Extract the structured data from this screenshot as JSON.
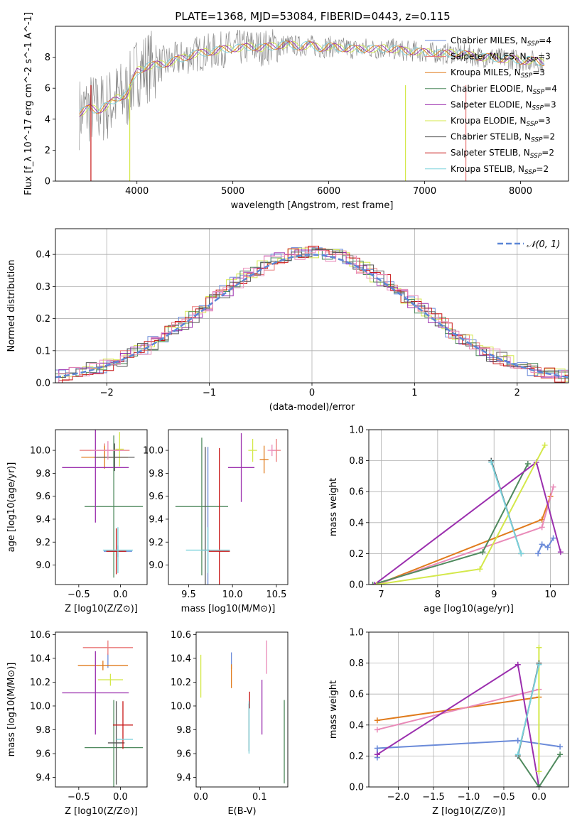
{
  "figure_title": "PLATE=1368, MJD=53084, FIBERID=0443, z=0.115",
  "colors": {
    "chabrier_miles": "#6b8bd9",
    "salpeter_miles": "#e97a7a",
    "kroupa_miles": "#e07b1c",
    "chabrier_elodie": "#4f8a5e",
    "salpeter_elodie": "#9b2fae",
    "kroupa_elodie": "#d4e84a",
    "chabrier_stelib": "#555555",
    "salpeter_stelib": "#c81818",
    "kroupa_stelib": "#7ad2dc",
    "data": "#808080",
    "normal": "#5b86d6",
    "pink": "#e98ab8",
    "grid": "#b0b0b0"
  },
  "chart_data": [
    {
      "type": "line",
      "panel": "spectrum",
      "xlabel": "wavelength [Angstrom, rest frame]",
      "ylabel": "Flux [f_λ 10^-17 erg cm^-2 s^-1 A^-1]",
      "xlim": [
        3150,
        8500
      ],
      "ylim": [
        0,
        10
      ],
      "xticks": [
        "4000",
        "5000",
        "6000",
        "7000",
        "8000"
      ],
      "yticks": [
        "0",
        "2",
        "4",
        "6",
        "8"
      ],
      "grid": false,
      "legend_position": "right",
      "legend": [
        {
          "label": "Chabrier MILES, N_SSP=4",
          "color_key": "chabrier_miles"
        },
        {
          "label": "Salpeter MILES, N_SSP=3",
          "color_key": "salpeter_miles"
        },
        {
          "label": "Kroupa MILES, N_SSP=3",
          "color_key": "kroupa_miles"
        },
        {
          "label": "Chabrier ELODIE, N_SSP=4",
          "color_key": "chabrier_elodie"
        },
        {
          "label": "Salpeter ELODIE, N_SSP=3",
          "color_key": "salpeter_elodie"
        },
        {
          "label": "Kroupa ELODIE, N_SSP=3",
          "color_key": "kroupa_elodie"
        },
        {
          "label": "Chabrier STELIB, N_SSP=2",
          "color_key": "chabrier_stelib"
        },
        {
          "label": "Salpeter STELIB, N_SSP=2",
          "color_key": "salpeter_stelib"
        },
        {
          "label": "Kroupa STELIB, N_SSP=2",
          "color_key": "kroupa_stelib"
        }
      ],
      "continuum": [
        [
          3400,
          4.4
        ],
        [
          3500,
          4.7
        ],
        [
          3600,
          4.6
        ],
        [
          3700,
          4.9
        ],
        [
          3800,
          5.4
        ],
        [
          3900,
          5.6
        ],
        [
          4000,
          7.1
        ],
        [
          4100,
          7.4
        ],
        [
          4200,
          7.5
        ],
        [
          4300,
          7.6
        ],
        [
          4400,
          7.8
        ],
        [
          4500,
          8.0
        ],
        [
          4600,
          8.2
        ],
        [
          4700,
          8.3
        ],
        [
          4800,
          8.4
        ],
        [
          4900,
          8.5
        ],
        [
          5000,
          8.6
        ],
        [
          5100,
          8.6
        ],
        [
          5200,
          8.7
        ],
        [
          5300,
          8.6
        ],
        [
          5400,
          8.7
        ],
        [
          5500,
          8.8
        ],
        [
          5600,
          8.8
        ],
        [
          5700,
          8.7
        ],
        [
          5800,
          8.8
        ],
        [
          5900,
          8.6
        ],
        [
          6000,
          8.7
        ],
        [
          6100,
          8.6
        ],
        [
          6200,
          8.6
        ],
        [
          6300,
          8.5
        ],
        [
          6400,
          8.6
        ],
        [
          6500,
          8.5
        ],
        [
          6600,
          8.6
        ],
        [
          6700,
          8.5
        ],
        [
          6800,
          8.4
        ],
        [
          6900,
          8.4
        ],
        [
          7000,
          8.3
        ],
        [
          7100,
          8.3
        ],
        [
          7200,
          8.2
        ],
        [
          7300,
          8.3
        ],
        [
          7400,
          8.2
        ],
        [
          7500,
          8.1
        ],
        [
          7600,
          8.0
        ],
        [
          7700,
          8.0
        ],
        [
          7800,
          7.9
        ],
        [
          7900,
          7.9
        ],
        [
          8000,
          7.8
        ],
        [
          8100,
          7.8
        ],
        [
          8200,
          7.7
        ],
        [
          8250,
          7.7
        ]
      ],
      "spikes": [
        [
          3520,
          "salpeter_stelib"
        ],
        [
          3925,
          "kroupa_elodie"
        ],
        [
          6800,
          "kroupa_elodie"
        ],
        [
          7430,
          "salpeter_miles"
        ]
      ]
    },
    {
      "type": "line",
      "panel": "residual_histogram",
      "xlabel": "(data-model)/error",
      "ylabel": "Normed distribution",
      "xlim": [
        -2.5,
        2.5
      ],
      "ylim": [
        0,
        0.48
      ],
      "xticks": [
        "−2",
        "−1",
        "0",
        "1",
        "2"
      ],
      "yticks": [
        "0.0",
        "0.1",
        "0.2",
        "0.3",
        "0.4"
      ],
      "grid": true,
      "legend_position": "upper right",
      "legend": [
        {
          "label": "𝒩(0, 1)",
          "color_key": "normal"
        }
      ]
    },
    {
      "type": "scatter",
      "panel": "age_vs_Z",
      "xlabel": "Z [log10(Z/Z⊙)]",
      "ylabel": "age [log10(age/yr)]",
      "xlim": [
        -0.78,
        0.32
      ],
      "ylim": [
        8.83,
        10.18
      ],
      "xticks": [
        "−0.5",
        "0.0"
      ],
      "yticks": [
        "9.0",
        "9.2",
        "9.4",
        "9.6",
        "9.8",
        "10.0"
      ],
      "grid": false,
      "points": [
        {
          "color_key": "chabrier_miles",
          "x": -0.03,
          "y": 9.12,
          "xerr": 0.17,
          "yerr": 0.05
        },
        {
          "color_key": "salpeter_miles",
          "x": -0.19,
          "y": 10.0,
          "xerr": 0.3,
          "yerr": 0.06
        },
        {
          "color_key": "kroupa_miles",
          "x": -0.19,
          "y": 9.94,
          "xerr": 0.28,
          "yerr": 0.1
        },
        {
          "color_key": "chabrier_elodie",
          "x": -0.08,
          "y": 9.51,
          "xerr": 0.35,
          "yerr": 0.62
        },
        {
          "color_key": "salpeter_elodie",
          "x": -0.3,
          "y": 9.85,
          "xerr": 0.4,
          "yerr": 0.48
        },
        {
          "color_key": "kroupa_elodie",
          "x": -0.01,
          "y": 10.01,
          "xerr": 0.05,
          "yerr": 0.15
        },
        {
          "color_key": "chabrier_stelib",
          "x": -0.07,
          "y": 9.94,
          "xerr": 0.24,
          "yerr": 0.12
        },
        {
          "color_key": "salpeter_stelib",
          "x": -0.05,
          "y": 9.12,
          "xerr": 0.12,
          "yerr": 0.2
        },
        {
          "color_key": "kroupa_stelib",
          "x": -0.03,
          "y": 9.13,
          "xerr": 0.18,
          "yerr": 0.2
        },
        {
          "color_key": "pink",
          "x": -0.15,
          "y": 10.0,
          "xerr": 0.2,
          "yerr": 0.08
        }
      ]
    },
    {
      "type": "scatter",
      "panel": "age_vs_mass",
      "xlabel": "mass [log10(M/M⊙)]",
      "ylabel": "",
      "xlim": [
        9.27,
        10.63
      ],
      "ylim": [
        8.83,
        10.18
      ],
      "xticks": [
        "9.5",
        "10.0",
        "10.5"
      ],
      "yticks": [
        "9.0",
        "9.2",
        "9.4",
        "9.6",
        "9.8",
        "10.0"
      ],
      "grid": false,
      "points": [
        {
          "color_key": "chabrier_miles",
          "x": 9.72,
          "y": 9.13,
          "xerr": 0.0,
          "yerr": 0.9
        },
        {
          "color_key": "salpeter_miles",
          "x": 10.5,
          "y": 10.0,
          "xerr": 0.05,
          "yerr": 0.1
        },
        {
          "color_key": "kroupa_miles",
          "x": 10.36,
          "y": 9.92,
          "xerr": 0.05,
          "yerr": 0.12
        },
        {
          "color_key": "chabrier_elodie",
          "x": 9.65,
          "y": 9.51,
          "xerr": 0.3,
          "yerr": 0.6
        },
        {
          "color_key": "salpeter_elodie",
          "x": 10.1,
          "y": 9.85,
          "xerr": 0.15,
          "yerr": 0.3
        },
        {
          "color_key": "kroupa_elodie",
          "x": 10.23,
          "y": 10.0,
          "xerr": 0.05,
          "yerr": 0.1
        },
        {
          "color_key": "chabrier_stelib",
          "x": 9.69,
          "y": 9.13,
          "xerr": 0.05,
          "yerr": 0.9
        },
        {
          "color_key": "salpeter_stelib",
          "x": 9.85,
          "y": 9.12,
          "xerr": 0.12,
          "yerr": 0.9
        },
        {
          "color_key": "kroupa_stelib",
          "x": 9.72,
          "y": 9.13,
          "xerr": 0.25,
          "yerr": 0.2
        },
        {
          "color_key": "pink",
          "x": 10.45,
          "y": 10.0,
          "xerr": 0.05,
          "yerr": 0.05
        }
      ]
    },
    {
      "type": "line",
      "panel": "mass_weight_vs_age",
      "xlabel": "age [log10(age/yr)]",
      "ylabel": "mass weight",
      "xlim": [
        6.78,
        10.32
      ],
      "ylim": [
        0,
        1
      ],
      "xticks": [
        "7",
        "8",
        "9",
        "10"
      ],
      "yticks": [
        "0.0",
        "0.2",
        "0.4",
        "0.6",
        "0.8",
        "1.0"
      ],
      "grid": true,
      "series": [
        {
          "color_key": "chabrier_miles",
          "x": [
            9.78,
            9.85,
            9.95,
            10.05
          ],
          "y": [
            0.2,
            0.26,
            0.24,
            0.3
          ]
        },
        {
          "color_key": "kroupa_miles",
          "x": [
            6.92,
            9.85,
            10.0
          ],
          "y": [
            0.0,
            0.42,
            0.57
          ]
        },
        {
          "color_key": "pink",
          "x": [
            6.92,
            9.85,
            10.05
          ],
          "y": [
            0.0,
            0.37,
            0.63
          ]
        },
        {
          "color_key": "chabrier_elodie",
          "x": [
            6.85,
            8.8,
            9.6
          ],
          "y": [
            0.0,
            0.21,
            0.78
          ]
        },
        {
          "color_key": "salpeter_elodie",
          "x": [
            6.88,
            9.75,
            10.18
          ],
          "y": [
            0.0,
            0.79,
            0.21
          ]
        },
        {
          "color_key": "kroupa_elodie",
          "x": [
            6.92,
            8.75,
            9.9
          ],
          "y": [
            0.0,
            0.1,
            0.9
          ]
        },
        {
          "color_key": "chabrier_stelib",
          "x": [
            8.95,
            9.48
          ],
          "y": [
            0.8,
            0.2
          ]
        },
        {
          "color_key": "kroupa_stelib",
          "x": [
            8.95,
            9.48
          ],
          "y": [
            0.79,
            0.2
          ]
        }
      ]
    },
    {
      "type": "scatter",
      "panel": "mass_vs_Z",
      "xlabel": "Z [log10(Z/Z⊙)]",
      "ylabel": "mass [log10(M/M⊙)]",
      "xlim": [
        -0.78,
        0.32
      ],
      "ylim": [
        9.32,
        10.62
      ],
      "xticks": [
        "−0.5",
        "0.0"
      ],
      "yticks": [
        "9.4",
        "9.6",
        "9.8",
        "10.0",
        "10.2",
        "10.4",
        "10.6"
      ],
      "grid": false,
      "points": [
        {
          "color_key": "chabrier_miles",
          "x": -0.15,
          "y": 10.38,
          "xerr": 0.0,
          "yerr": 0.06
        },
        {
          "color_key": "salpeter_miles",
          "x": -0.15,
          "y": 10.49,
          "xerr": 0.3,
          "yerr": 0.06
        },
        {
          "color_key": "kroupa_miles",
          "x": -0.21,
          "y": 10.34,
          "xerr": 0.3,
          "yerr": 0.04
        },
        {
          "color_key": "chabrier_elodie",
          "x": -0.08,
          "y": 9.65,
          "xerr": 0.35,
          "yerr": 0.4
        },
        {
          "color_key": "salpeter_elodie",
          "x": -0.3,
          "y": 10.11,
          "xerr": 0.4,
          "yerr": 0.35
        },
        {
          "color_key": "kroupa_elodie",
          "x": -0.12,
          "y": 10.22,
          "xerr": 0.15,
          "yerr": 0.05
        },
        {
          "color_key": "chabrier_stelib",
          "x": -0.05,
          "y": 9.69,
          "xerr": 0.1,
          "yerr": 0.35
        },
        {
          "color_key": "salpeter_stelib",
          "x": 0.03,
          "y": 9.84,
          "xerr": 0.12,
          "yerr": 0.2
        },
        {
          "color_key": "kroupa_stelib",
          "x": 0.05,
          "y": 9.72,
          "xerr": 0.1,
          "yerr": 0.0
        }
      ]
    },
    {
      "type": "scatter",
      "panel": "mass_vs_ebv",
      "xlabel": "E(B-V)",
      "ylabel": "",
      "xlim": [
        -0.008,
        0.148
      ],
      "ylim": [
        9.32,
        10.62
      ],
      "xticks": [
        "0.0",
        "0.1"
      ],
      "yticks": [
        "9.4",
        "9.6",
        "9.8",
        "10.0",
        "10.2",
        "10.4",
        "10.6"
      ],
      "grid": false,
      "points": [
        {
          "color_key": "chabrier_miles",
          "x": 0.052,
          "y": 10.38,
          "yerr": 0.07
        },
        {
          "color_key": "kroupa_miles",
          "x": 0.052,
          "y": 10.25,
          "yerr": 0.1
        },
        {
          "color_key": "kroupa_elodie",
          "x": 0.0,
          "y": 10.25,
          "yerr": 0.18
        },
        {
          "color_key": "salpeter_stelib",
          "x": 0.083,
          "y": 10.05,
          "yerr": 0.07
        },
        {
          "color_key": "chabrier_stelib",
          "x": 0.082,
          "y": 9.82,
          "yerr": 0.2
        },
        {
          "color_key": "kroupa_stelib",
          "x": 0.082,
          "y": 9.82,
          "yerr": 0.22
        },
        {
          "color_key": "salpeter_elodie",
          "x": 0.104,
          "y": 9.99,
          "yerr": 0.23
        },
        {
          "color_key": "pink",
          "x": 0.112,
          "y": 10.41,
          "yerr": 0.14
        },
        {
          "color_key": "chabrier_elodie",
          "x": 0.142,
          "y": 9.7,
          "yerr": 0.35
        }
      ]
    },
    {
      "type": "line",
      "panel": "mass_weight_vs_Z",
      "xlabel": "Z [log10(Z/Z⊙)]",
      "ylabel": "mass weight",
      "xlim": [
        -2.42,
        0.42
      ],
      "ylim": [
        0,
        1
      ],
      "xticks": [
        "−2.0",
        "−1.5",
        "−1.0",
        "−0.5",
        "0.0"
      ],
      "yticks": [
        "0.0",
        "0.2",
        "0.4",
        "0.6",
        "0.8",
        "1.0"
      ],
      "grid": true,
      "series": [
        {
          "color_key": "chabrier_miles",
          "x": [
            -2.3,
            -2.3,
            -0.3,
            0.3
          ],
          "y": [
            0.19,
            0.25,
            0.3,
            0.26
          ]
        },
        {
          "color_key": "kroupa_miles",
          "x": [
            -2.3,
            0.0
          ],
          "y": [
            0.43,
            0.58
          ]
        },
        {
          "color_key": "pink",
          "x": [
            -2.3,
            0.0
          ],
          "y": [
            0.37,
            0.63
          ]
        },
        {
          "color_key": "salpeter_elodie",
          "x": [
            -2.3,
            -0.3,
            0.0
          ],
          "y": [
            0.21,
            0.79,
            0.0
          ]
        },
        {
          "color_key": "chabrier_elodie",
          "x": [
            -0.3,
            0.0,
            0.3
          ],
          "y": [
            0.2,
            0.0,
            0.21
          ]
        },
        {
          "color_key": "kroupa_elodie",
          "x": [
            0.0,
            0.0
          ],
          "y": [
            0.1,
            0.9
          ]
        },
        {
          "color_key": "chabrier_stelib",
          "x": [
            -0.3,
            0.0
          ],
          "y": [
            0.2,
            0.8
          ]
        },
        {
          "color_key": "kroupa_stelib",
          "x": [
            -0.3,
            0.0
          ],
          "y": [
            0.21,
            0.79
          ]
        }
      ]
    }
  ]
}
